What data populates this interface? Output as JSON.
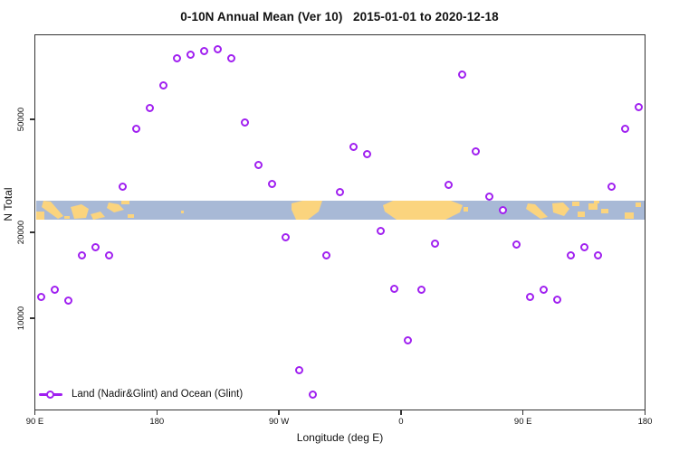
{
  "title": "0-10N Annual Mean (Ver 10)   2015-01-01 to 2020-12-18",
  "axes": {
    "x": {
      "label": "Longitude (deg E)",
      "ticks": [
        {
          "label": "90 E",
          "axis_deg": 90
        },
        {
          "label": "180",
          "axis_deg": 180
        },
        {
          "label": "90 W",
          "axis_deg": 270
        },
        {
          "label": "0",
          "axis_deg": 360
        },
        {
          "label": "90 E",
          "axis_deg": 450
        },
        {
          "label": "180",
          "axis_deg": 540
        }
      ]
    },
    "y": {
      "label": "N Total",
      "scale": "log",
      "ticks": [
        {
          "label": "50000",
          "value": 50000
        },
        {
          "label": "20000",
          "value": 20000
        },
        {
          "label": "10000",
          "value": 10000
        }
      ]
    }
  },
  "legend": {
    "series_label": "Land (Nadir&Glint) and Ocean (Glint)"
  },
  "colors": {
    "accent": "#a020f0",
    "ocean": "#a8b9d6",
    "land": "#fbd47e",
    "frame": "#333333"
  },
  "map_strip": {
    "description": "0-10N latitude world-map band (ocean with land masses) drawn across the plot",
    "approx_value_range": [
      22000,
      26500
    ]
  },
  "chart_data": {
    "type": "scatter",
    "title": "0-10N Annual Mean (Ver 10)   2015-01-01 to 2020-12-18",
    "xlabel": "Longitude (deg E)",
    "ylabel": "N Total",
    "series_name": "Land (Nadir&Glint) and Ocean (Glint)",
    "marker": "open-circle",
    "x_axis_note": "axis spans 450 deg starting at 90E, wrapping 90E-180-90W-0-90E-180; axis_deg is degrees east of Greenwich measured continuously from 90 to 540",
    "x_axis_range_deg": [
      90,
      540
    ],
    "y_scale": "log",
    "ylim_approx": [
      4800,
      105000
    ],
    "grid": false,
    "legend_position": "bottom-left inside plot",
    "points": [
      {
        "axis_deg": 95,
        "n_total": 11900
      },
      {
        "axis_deg": 105,
        "n_total": 12600
      },
      {
        "axis_deg": 115,
        "n_total": 11500
      },
      {
        "axis_deg": 125,
        "n_total": 16600
      },
      {
        "axis_deg": 135,
        "n_total": 17800
      },
      {
        "axis_deg": 145,
        "n_total": 16600
      },
      {
        "axis_deg": 155,
        "n_total": 28900
      },
      {
        "axis_deg": 165,
        "n_total": 46400
      },
      {
        "axis_deg": 175,
        "n_total": 54900
      },
      {
        "axis_deg": 185,
        "n_total": 65900
      },
      {
        "axis_deg": 195,
        "n_total": 81500
      },
      {
        "axis_deg": 205,
        "n_total": 84500
      },
      {
        "axis_deg": 215,
        "n_total": 87000
      },
      {
        "axis_deg": 225,
        "n_total": 88300
      },
      {
        "axis_deg": 235,
        "n_total": 81500
      },
      {
        "axis_deg": 245,
        "n_total": 48500
      },
      {
        "axis_deg": 255,
        "n_total": 34400
      },
      {
        "axis_deg": 265,
        "n_total": 29700
      },
      {
        "axis_deg": 275,
        "n_total": 19200
      },
      {
        "axis_deg": 285,
        "n_total": 6590
      },
      {
        "axis_deg": 295,
        "n_total": 5410
      },
      {
        "axis_deg": 305,
        "n_total": 16600
      },
      {
        "axis_deg": 315,
        "n_total": 27800
      },
      {
        "axis_deg": 325,
        "n_total": 40100
      },
      {
        "axis_deg": 335,
        "n_total": 37800
      },
      {
        "axis_deg": 345,
        "n_total": 20200
      },
      {
        "axis_deg": 355,
        "n_total": 12700
      },
      {
        "axis_deg": 365,
        "n_total": 8390
      },
      {
        "axis_deg": 375,
        "n_total": 12600
      },
      {
        "axis_deg": 385,
        "n_total": 18300
      },
      {
        "axis_deg": 395,
        "n_total": 29500
      },
      {
        "axis_deg": 405,
        "n_total": 71900
      },
      {
        "axis_deg": 415,
        "n_total": 38400
      },
      {
        "axis_deg": 425,
        "n_total": 26800
      },
      {
        "axis_deg": 435,
        "n_total": 23900
      },
      {
        "axis_deg": 445,
        "n_total": 18200
      },
      {
        "axis_deg": 455,
        "n_total": 11900
      },
      {
        "axis_deg": 465,
        "n_total": 12600
      },
      {
        "axis_deg": 475,
        "n_total": 11600
      },
      {
        "axis_deg": 485,
        "n_total": 16600
      },
      {
        "axis_deg": 495,
        "n_total": 17800
      },
      {
        "axis_deg": 505,
        "n_total": 16600
      },
      {
        "axis_deg": 515,
        "n_total": 29000
      },
      {
        "axis_deg": 525,
        "n_total": 46400
      },
      {
        "axis_deg": 535,
        "n_total": 55300
      }
    ]
  }
}
